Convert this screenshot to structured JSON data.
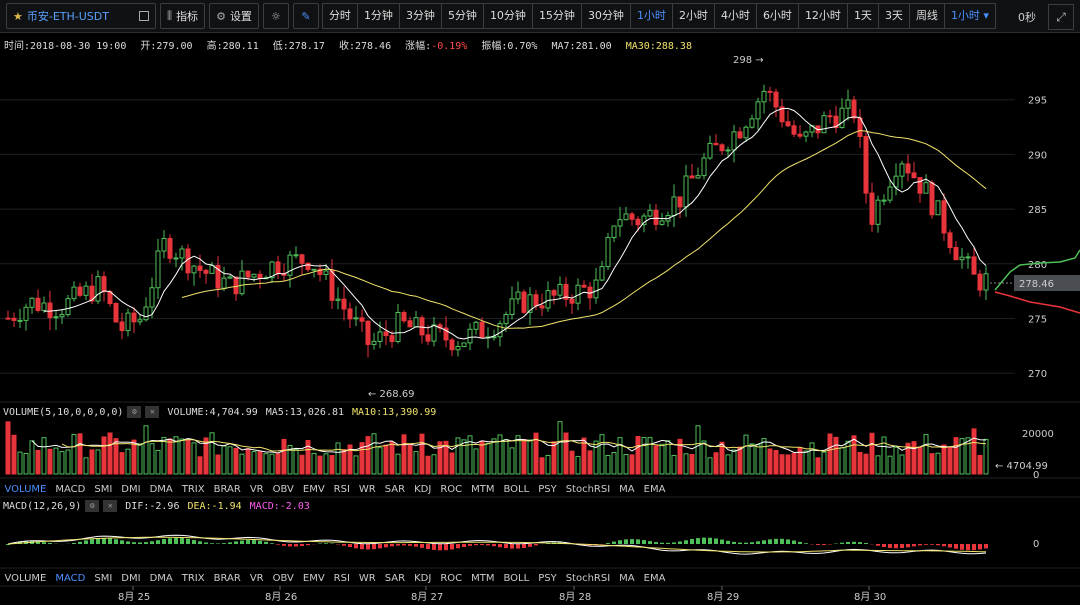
{
  "toolbar": {
    "symbol": "币安-ETH-USDT",
    "indicators_label": "指标",
    "settings_label": "设置",
    "intervals": [
      "分时",
      "1分钟",
      "3分钟",
      "5分钟",
      "10分钟",
      "15分钟",
      "30分钟",
      "1小时",
      "2小时",
      "4小时",
      "6小时",
      "12小时",
      "1天",
      "3天",
      "周线"
    ],
    "active_interval": "1小时",
    "interval_dropdown": "1小时",
    "countdown": "0秒"
  },
  "info": {
    "time": "时间:2018-08-30 19:00",
    "open": "开:279.00",
    "high": "高:280.11",
    "low": "低:278.17",
    "close": "收:278.46",
    "change_label": "涨幅:",
    "change_value": "-0.19%",
    "amplitude": "振幅:0.70%",
    "ma7": "MA7:281.00",
    "ma30": "MA30:288.38"
  },
  "price_axis": [
    "295",
    "290",
    "285",
    "280",
    "275",
    "270"
  ],
  "price_marks": {
    "high": "298 →",
    "low": "← 268.69",
    "current": "278.46"
  },
  "volume_panel": {
    "label": "VOLUME(5,10,0,0,0,0)",
    "volume": "VOLUME:4,704.99",
    "ma5": "MA5:13,026.81",
    "ma10": "MA10:13,390.99",
    "axis_top": "20000",
    "axis_zero": "0",
    "current": "← 4704.99"
  },
  "indicator_tabs": [
    "VOLUME",
    "MACD",
    "SMI",
    "DMI",
    "DMA",
    "TRIX",
    "BRAR",
    "VR",
    "OBV",
    "EMV",
    "RSI",
    "WR",
    "SAR",
    "KDJ",
    "ROC",
    "MTM",
    "BOLL",
    "PSY",
    "StochRSI",
    "MA",
    "EMA"
  ],
  "macd_panel": {
    "label": "MACD(12,26,9)",
    "dif": "DIF:-2.96",
    "dea": "DEA:-1.94",
    "macd": "MACD:-2.03",
    "axis_zero": "0"
  },
  "dates": [
    "8月 25",
    "8月 26",
    "8月 27",
    "8月 28",
    "8月 29",
    "8月 30"
  ],
  "colors": {
    "up": "#4fbf5a",
    "down": "#e8343b",
    "ma7": "#ffffff",
    "ma30": "#f0e36b",
    "accent": "#4a90ff"
  }
}
